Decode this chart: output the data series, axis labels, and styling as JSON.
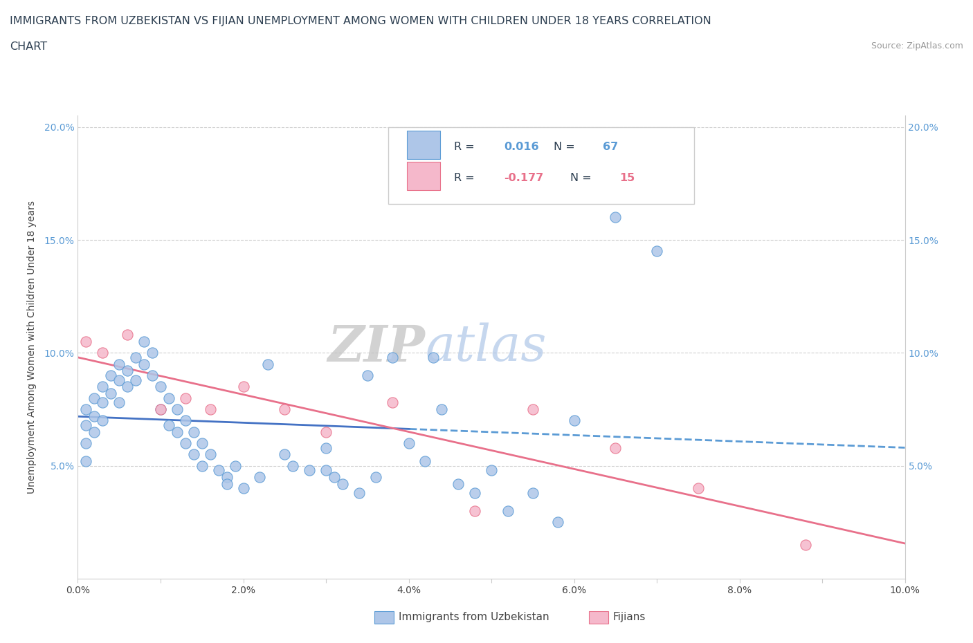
{
  "title_line1": "IMMIGRANTS FROM UZBEKISTAN VS FIJIAN UNEMPLOYMENT AMONG WOMEN WITH CHILDREN UNDER 18 YEARS CORRELATION",
  "title_line2": "CHART",
  "source": "Source: ZipAtlas.com",
  "ylabel": "Unemployment Among Women with Children Under 18 years",
  "xlim": [
    0.0,
    0.1
  ],
  "ylim": [
    0.0,
    0.205
  ],
  "xtick_labels": [
    "0.0%",
    "",
    "2.0%",
    "",
    "4.0%",
    "",
    "6.0%",
    "",
    "8.0%",
    "",
    "10.0%"
  ],
  "xtick_vals": [
    0.0,
    0.01,
    0.02,
    0.03,
    0.04,
    0.05,
    0.06,
    0.07,
    0.08,
    0.09,
    0.1
  ],
  "ytick_labels": [
    "5.0%",
    "10.0%",
    "15.0%",
    "20.0%"
  ],
  "ytick_vals": [
    0.05,
    0.1,
    0.15,
    0.2
  ],
  "color_uzbek": "#aec6e8",
  "color_fijian": "#f5b8cb",
  "color_uzbek_line": "#5b9bd5",
  "color_fijian_line": "#e8708a",
  "color_uzbek_dark": "#4472c4",
  "watermark_zip": "#c8c8c8",
  "watermark_atlas": "#aec6e8",
  "legend_uzbek_R": "0.016",
  "legend_uzbek_N": "67",
  "legend_fijian_R": "-0.177",
  "legend_fijian_N": "15",
  "uzbek_x": [
    0.001,
    0.001,
    0.001,
    0.001,
    0.002,
    0.002,
    0.002,
    0.003,
    0.003,
    0.003,
    0.004,
    0.004,
    0.005,
    0.005,
    0.005,
    0.006,
    0.006,
    0.007,
    0.007,
    0.008,
    0.008,
    0.009,
    0.009,
    0.01,
    0.01,
    0.011,
    0.011,
    0.012,
    0.012,
    0.013,
    0.013,
    0.014,
    0.014,
    0.015,
    0.015,
    0.016,
    0.017,
    0.018,
    0.018,
    0.019,
    0.02,
    0.022,
    0.023,
    0.025,
    0.026,
    0.028,
    0.03,
    0.03,
    0.031,
    0.032,
    0.034,
    0.035,
    0.036,
    0.038,
    0.04,
    0.042,
    0.043,
    0.044,
    0.046,
    0.048,
    0.05,
    0.052,
    0.055,
    0.058,
    0.06,
    0.065,
    0.07
  ],
  "uzbek_y": [
    0.075,
    0.068,
    0.06,
    0.052,
    0.08,
    0.072,
    0.065,
    0.085,
    0.078,
    0.07,
    0.09,
    0.082,
    0.095,
    0.088,
    0.078,
    0.092,
    0.085,
    0.098,
    0.088,
    0.105,
    0.095,
    0.1,
    0.09,
    0.085,
    0.075,
    0.08,
    0.068,
    0.075,
    0.065,
    0.07,
    0.06,
    0.065,
    0.055,
    0.06,
    0.05,
    0.055,
    0.048,
    0.045,
    0.042,
    0.05,
    0.04,
    0.045,
    0.095,
    0.055,
    0.05,
    0.048,
    0.058,
    0.048,
    0.045,
    0.042,
    0.038,
    0.09,
    0.045,
    0.098,
    0.06,
    0.052,
    0.098,
    0.075,
    0.042,
    0.038,
    0.048,
    0.03,
    0.038,
    0.025,
    0.07,
    0.16,
    0.145
  ],
  "fijian_x": [
    0.001,
    0.003,
    0.006,
    0.01,
    0.013,
    0.016,
    0.02,
    0.025,
    0.03,
    0.038,
    0.048,
    0.055,
    0.065,
    0.075,
    0.088
  ],
  "fijian_y": [
    0.105,
    0.1,
    0.108,
    0.075,
    0.08,
    0.075,
    0.085,
    0.075,
    0.065,
    0.078,
    0.03,
    0.075,
    0.058,
    0.04,
    0.015
  ],
  "background_color": "#ffffff",
  "grid_color": "#d0d0d0"
}
